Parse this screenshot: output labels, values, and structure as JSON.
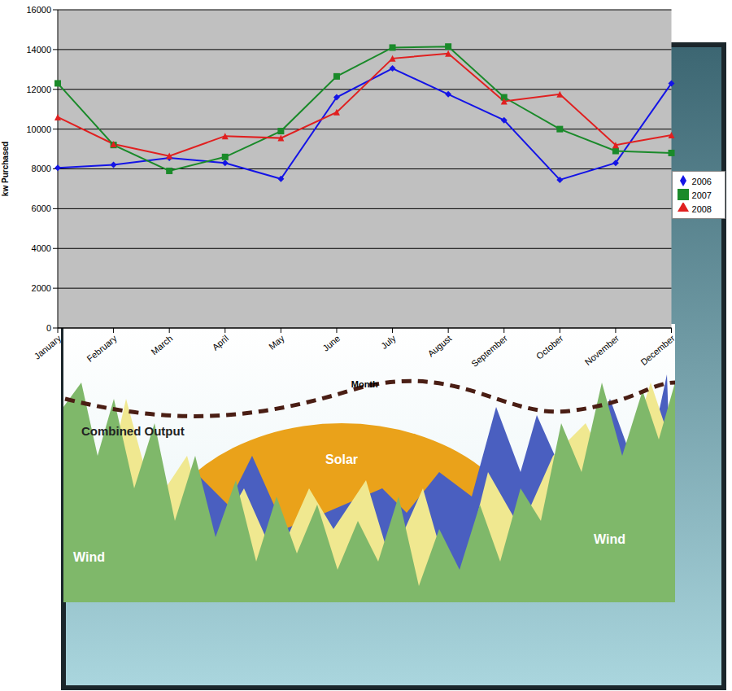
{
  "chart_data": {
    "type": "line",
    "x_label": "Month",
    "y_label": "kw Purchased",
    "categories": [
      "January",
      "February",
      "March",
      "April",
      "May",
      "June",
      "July",
      "August",
      "September",
      "October",
      "November",
      "December"
    ],
    "series": [
      {
        "name": "2006",
        "color": "#1414e6",
        "marker": "diamond",
        "values": [
          8050,
          8200,
          8550,
          8300,
          7500,
          11600,
          13050,
          11750,
          10450,
          7450,
          8300,
          12300
        ]
      },
      {
        "name": "2007",
        "color": "#1a8a2a",
        "marker": "square",
        "values": [
          12300,
          9200,
          7900,
          8600,
          9900,
          12650,
          14100,
          14150,
          11600,
          10000,
          8900,
          8800
        ]
      },
      {
        "name": "2008",
        "color": "#e02020",
        "marker": "triangle",
        "values": [
          10600,
          9250,
          8650,
          9650,
          9550,
          10850,
          13550,
          13800,
          11400,
          11750,
          9200,
          9700
        ]
      }
    ],
    "ylim": [
      0,
      16000
    ],
    "yticks": [
      0,
      2000,
      4000,
      6000,
      8000,
      10000,
      12000,
      14000,
      16000
    ],
    "grid": true,
    "legend": "right",
    "annotations": [
      "Combined Output",
      "Solar",
      "Wind",
      "Wind"
    ]
  }
}
